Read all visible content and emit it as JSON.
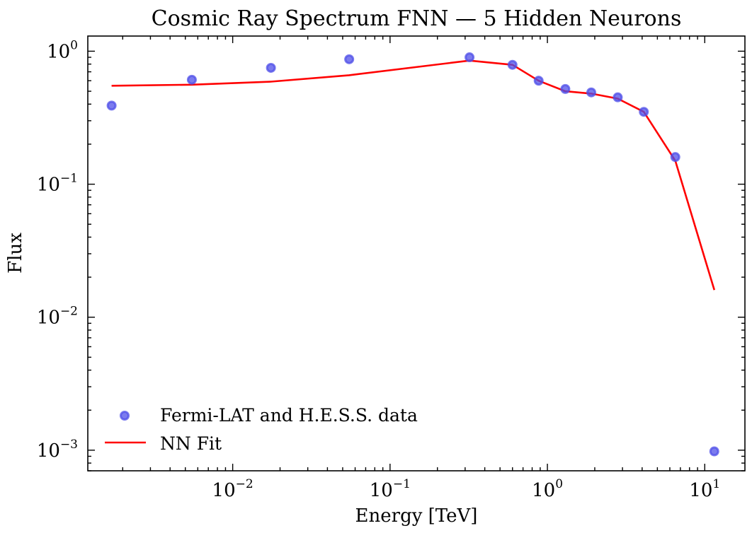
{
  "chart_data": {
    "type": "scatter",
    "title": "Cosmic Ray Spectrum FNN — 5 Hidden Neurons",
    "xlabel": "Energy [TeV]",
    "ylabel": "Flux",
    "xscale": "log",
    "yscale": "log",
    "xlim": [
      0.0012,
      18
    ],
    "ylim": [
      0.0007,
      1.3
    ],
    "x_ticks": [
      {
        "value": 0.01,
        "base": "10",
        "exp": "−2"
      },
      {
        "value": 0.1,
        "base": "10",
        "exp": "−1"
      },
      {
        "value": 1,
        "base": "10",
        "exp": "0"
      },
      {
        "value": 10,
        "base": "10",
        "exp": "1"
      }
    ],
    "y_ticks": [
      {
        "value": 0.001,
        "base": "10",
        "exp": "−3"
      },
      {
        "value": 0.01,
        "base": "10",
        "exp": "−2"
      },
      {
        "value": 0.1,
        "base": "10",
        "exp": "−1"
      },
      {
        "value": 1,
        "base": "10",
        "exp": "0"
      }
    ],
    "grid": false,
    "legend_position": "bottom-left",
    "series": [
      {
        "name": "Fermi-LAT and H.E.S.S. data",
        "kind": "scatter",
        "color": "#4f4fe8",
        "points": [
          {
            "x": 0.0017,
            "y": 0.39
          },
          {
            "x": 0.0055,
            "y": 0.61
          },
          {
            "x": 0.0175,
            "y": 0.75
          },
          {
            "x": 0.055,
            "y": 0.87
          },
          {
            "x": 0.32,
            "y": 0.9
          },
          {
            "x": 0.6,
            "y": 0.79
          },
          {
            "x": 0.88,
            "y": 0.6
          },
          {
            "x": 1.3,
            "y": 0.52
          },
          {
            "x": 1.9,
            "y": 0.49
          },
          {
            "x": 2.8,
            "y": 0.45
          },
          {
            "x": 4.1,
            "y": 0.35
          },
          {
            "x": 6.5,
            "y": 0.16
          },
          {
            "x": 11.5,
            "y": 0.00098
          }
        ]
      },
      {
        "name": "NN Fit",
        "kind": "line",
        "color": "#ff0000",
        "points": [
          {
            "x": 0.0017,
            "y": 0.55
          },
          {
            "x": 0.0055,
            "y": 0.56
          },
          {
            "x": 0.0175,
            "y": 0.59
          },
          {
            "x": 0.055,
            "y": 0.66
          },
          {
            "x": 0.32,
            "y": 0.85
          },
          {
            "x": 0.6,
            "y": 0.79
          },
          {
            "x": 0.88,
            "y": 0.6
          },
          {
            "x": 1.3,
            "y": 0.5
          },
          {
            "x": 1.9,
            "y": 0.48
          },
          {
            "x": 2.8,
            "y": 0.44
          },
          {
            "x": 4.1,
            "y": 0.35
          },
          {
            "x": 6.5,
            "y": 0.15
          },
          {
            "x": 11.5,
            "y": 0.016
          }
        ]
      }
    ]
  }
}
